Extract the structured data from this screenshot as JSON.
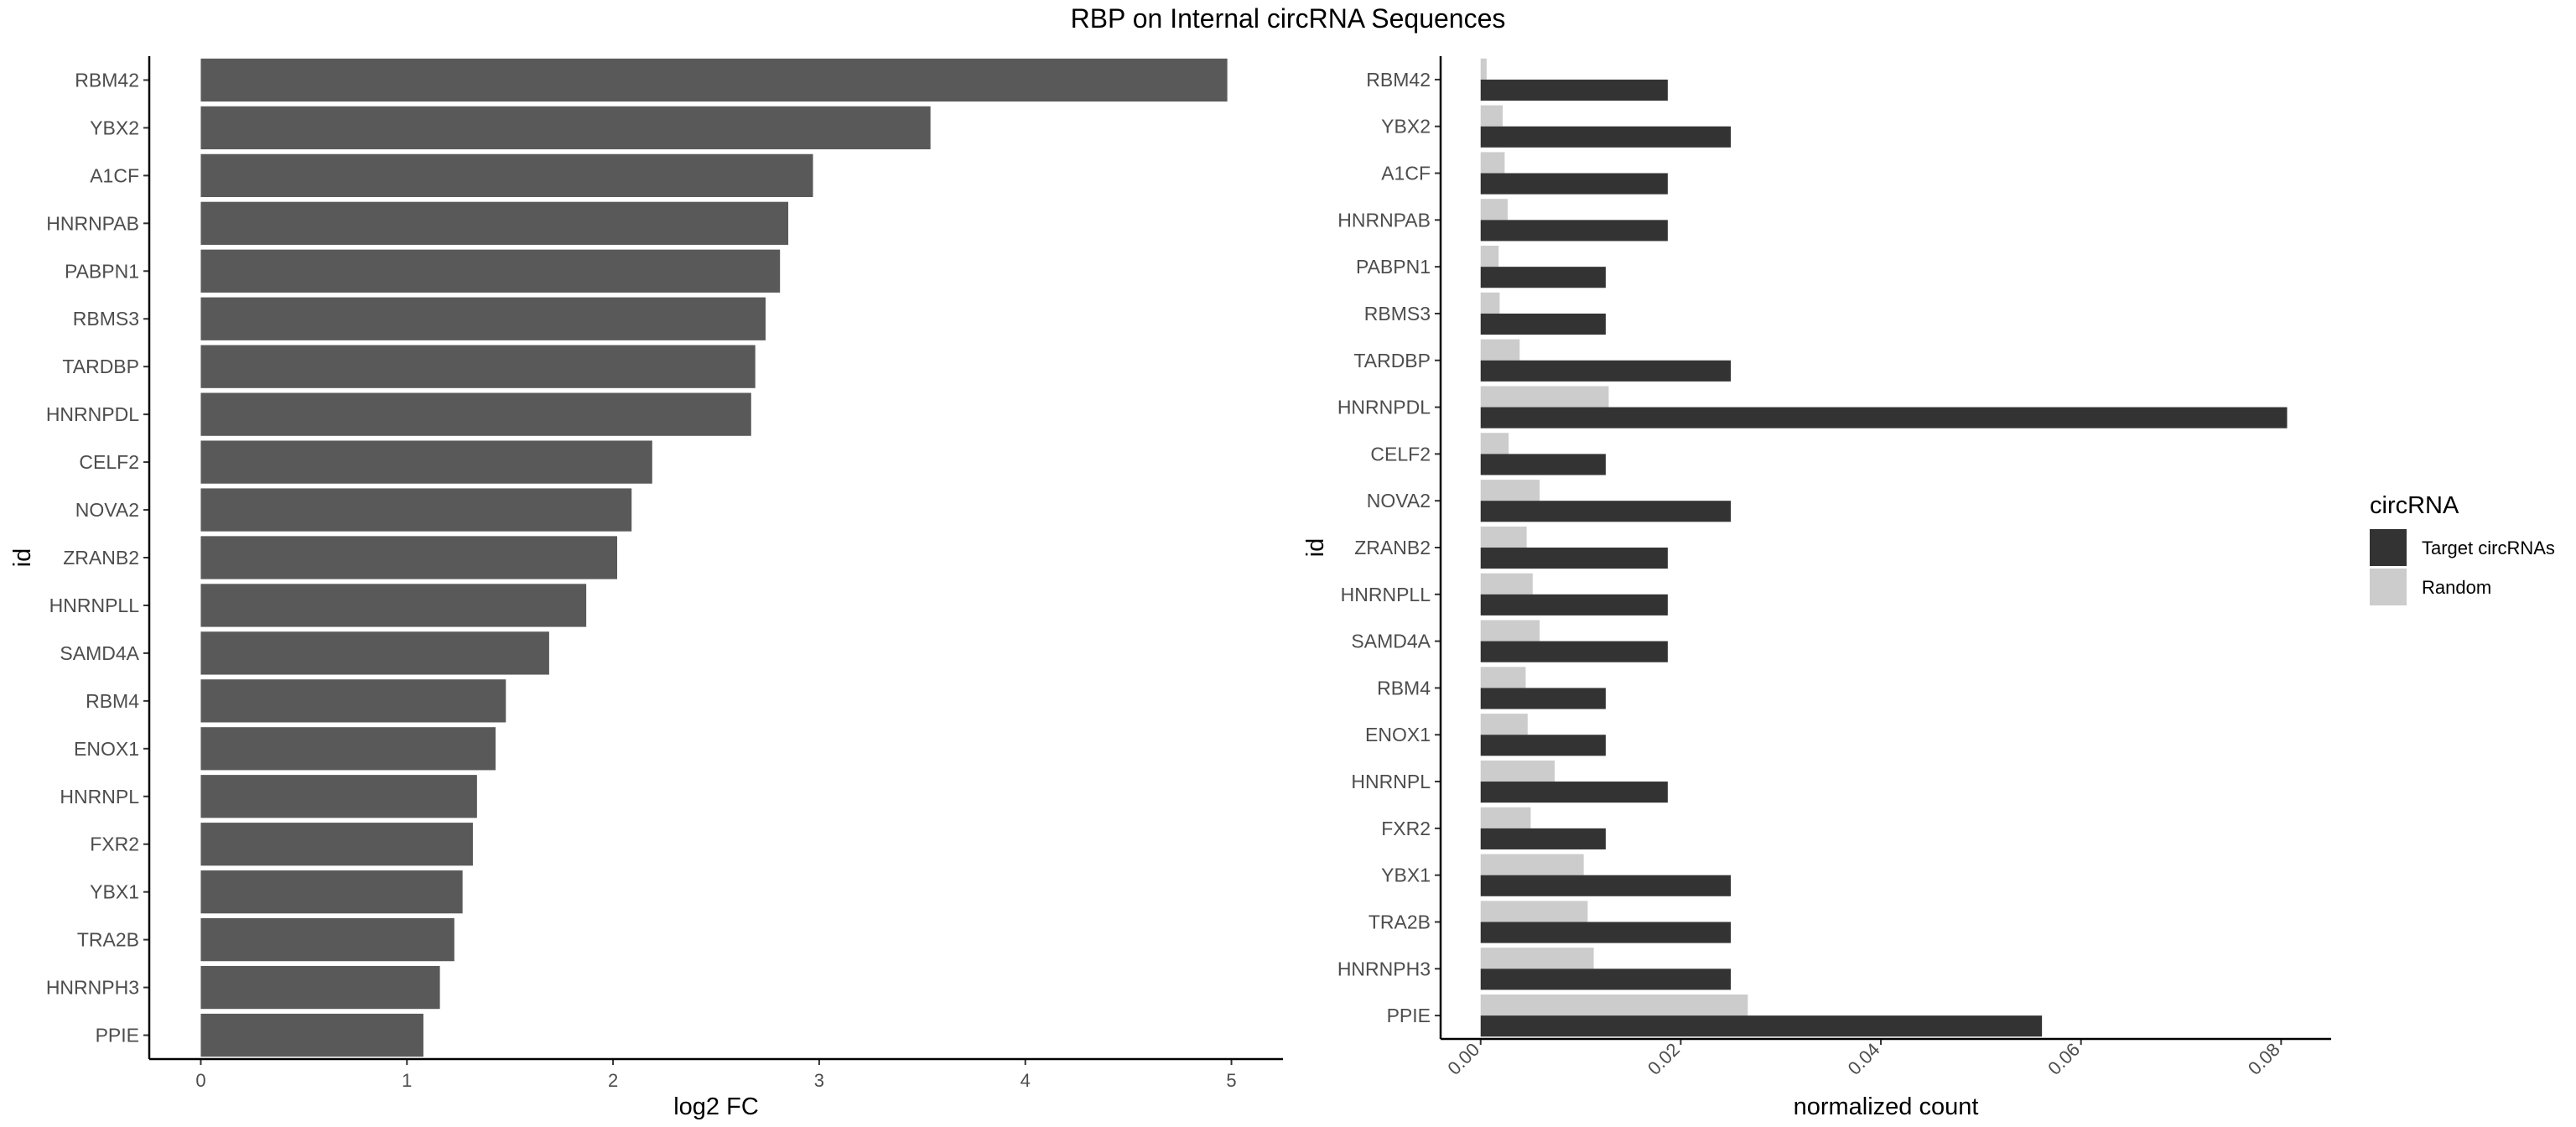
{
  "title": "RBP on Internal circRNA Sequences",
  "chart_data": [
    {
      "type": "bar",
      "orientation": "horizontal",
      "categories": [
        "RBM42",
        "YBX2",
        "A1CF",
        "HNRNPAB",
        "PABPN1",
        "RBMS3",
        "TARDBP",
        "HNRNPDL",
        "CELF2",
        "NOVA2",
        "ZRANB2",
        "HNRNPLL",
        "SAMD4A",
        "RBM4",
        "ENOX1",
        "HNRNPL",
        "FXR2",
        "YBX1",
        "TRA2B",
        "HNRNPH3",
        "PPIE"
      ],
      "values": [
        4.98,
        3.54,
        2.97,
        2.85,
        2.81,
        2.74,
        2.69,
        2.67,
        2.19,
        2.09,
        2.02,
        1.87,
        1.69,
        1.48,
        1.43,
        1.34,
        1.32,
        1.27,
        1.23,
        1.16,
        1.08
      ],
      "xlabel": "log2 FC",
      "ylabel": "id",
      "xlim": [
        -0.25,
        5.25
      ],
      "xticks": [
        "0",
        "1",
        "2",
        "3",
        "4",
        "5"
      ],
      "bar_color": "#595959",
      "grid": false
    },
    {
      "type": "bar",
      "orientation": "horizontal",
      "grouped": true,
      "categories": [
        "RBM42",
        "YBX2",
        "A1CF",
        "HNRNPAB",
        "PABPN1",
        "RBMS3",
        "TARDBP",
        "HNRNPDL",
        "CELF2",
        "NOVA2",
        "ZRANB2",
        "HNRNPLL",
        "SAMD4A",
        "RBM4",
        "ENOX1",
        "HNRNPL",
        "FXR2",
        "YBX1",
        "TRA2B",
        "HNRNPH3",
        "PPIE"
      ],
      "series": [
        {
          "name": "Target circRNAs",
          "color": "#333333",
          "values": [
            0.0187,
            0.025,
            0.0187,
            0.0187,
            0.0125,
            0.0125,
            0.025,
            0.0806,
            0.0125,
            0.025,
            0.0187,
            0.0187,
            0.0187,
            0.0125,
            0.0125,
            0.0187,
            0.0125,
            0.025,
            0.025,
            0.025,
            0.0561
          ]
        },
        {
          "name": "Random",
          "color": "#cccccc",
          "values": [
            0.0006,
            0.0022,
            0.0024,
            0.0027,
            0.0018,
            0.0019,
            0.0039,
            0.0128,
            0.0028,
            0.0059,
            0.0046,
            0.0052,
            0.0059,
            0.0045,
            0.0047,
            0.0074,
            0.005,
            0.0103,
            0.0107,
            0.0113,
            0.0267
          ]
        }
      ],
      "xlabel": "normalized count",
      "ylabel": "id",
      "xlim": [
        -0.004,
        0.085
      ],
      "xticks": [
        "0.00",
        "0.02",
        "0.04",
        "0.06",
        "0.08"
      ],
      "legend": {
        "title": "circRNA",
        "position": "right"
      },
      "grid": false
    }
  ]
}
